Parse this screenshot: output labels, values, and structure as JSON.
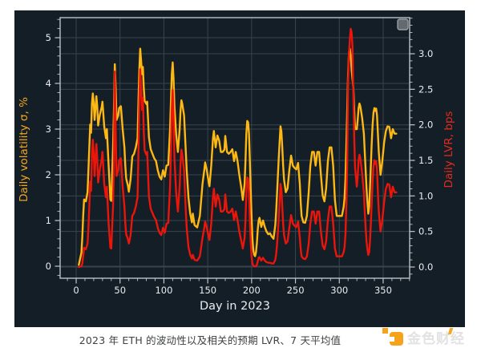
{
  "figure": {
    "background": "#141e27",
    "grid_color": "#38444e",
    "spine_color": "#b9c0c5",
    "tick_color": "#c3c9cd",
    "tick_label_color": "#e9ecee"
  },
  "legend_icon": {
    "name": "legend-box",
    "fill": "#646a6e",
    "stroke": "#989fa4"
  },
  "caption": {
    "text": "2023 年 ETH 的波动性以及相关的预期 LVR、7 天平均值"
  },
  "watermark": {
    "text": "金色财经",
    "accent_color": "#f7a823",
    "icon_color": "#f7a21b"
  },
  "chart_data": {
    "type": "line",
    "title": "",
    "xlabel": "Day in 2023",
    "grid": true,
    "legend_position": "none",
    "xaxis": {
      "lim": [
        -18.3,
        380.2
      ],
      "ticks": [
        0,
        50,
        100,
        150,
        200,
        250,
        300,
        350
      ],
      "tick_labels": [
        "0",
        "50",
        "100",
        "150",
        "200",
        "250",
        "300",
        "350"
      ],
      "minor_step": 10
    },
    "axes": {
      "left": {
        "label": "Daily volatility σ, %",
        "color": "#f4a61c",
        "lim": [
          -0.263,
          5.439
        ],
        "ticks": [
          0,
          1,
          2,
          3,
          4,
          5
        ],
        "tick_labels": [
          "0",
          "1",
          "2",
          "3",
          "4",
          "5"
        ],
        "minor_step": 0.2
      },
      "right": {
        "label": "Daily LVR, bps",
        "color": "#e8291c",
        "lim": [
          -0.158,
          3.508
        ],
        "ticks": [
          0,
          0.5,
          1.0,
          1.5,
          2.0,
          2.5,
          3.0
        ],
        "tick_labels": [
          "0.0",
          "0.5",
          "1.0",
          "1.5",
          "2.0",
          "2.5",
          "3.0"
        ],
        "minor_step": 0.1
      }
    },
    "x": [
      3,
      6,
      7,
      8,
      9,
      11,
      13,
      14,
      15,
      16,
      17,
      18,
      19,
      20,
      21,
      23,
      24,
      25,
      27,
      29,
      30,
      32,
      34,
      35,
      37,
      39,
      40,
      42,
      43,
      44,
      45,
      46,
      48,
      49,
      51,
      53,
      55,
      56,
      57,
      59,
      60,
      62,
      64,
      66,
      68,
      70,
      71,
      72,
      73,
      74,
      75,
      76,
      77,
      78,
      80,
      81,
      83,
      85,
      87,
      89,
      91,
      93,
      95,
      97,
      99,
      101,
      103,
      105,
      107,
      108,
      109,
      110,
      111,
      112,
      114,
      116,
      118,
      119,
      120,
      121,
      123,
      125,
      126,
      128,
      130,
      132,
      133,
      135,
      138,
      141,
      144,
      146,
      147,
      149,
      151,
      152,
      154,
      156,
      157,
      159,
      161,
      163,
      165,
      167,
      169,
      170,
      172,
      174,
      176,
      178,
      180,
      182,
      184,
      186,
      188,
      190,
      192,
      193,
      194,
      195,
      196,
      197,
      198,
      199,
      200,
      201,
      202,
      203,
      204,
      205,
      206,
      207,
      208,
      209,
      211,
      213,
      215,
      217,
      219,
      221,
      223,
      225,
      227,
      228,
      229,
      230,
      231,
      232,
      233,
      234,
      235,
      236,
      237,
      239,
      241,
      243,
      245,
      247,
      249,
      251,
      253,
      255,
      256,
      257,
      259,
      261,
      263,
      265,
      267,
      269,
      271,
      273,
      275,
      277,
      279,
      281,
      283,
      285,
      287,
      289,
      291,
      293,
      295,
      297,
      299,
      301,
      303,
      305,
      306,
      307,
      308,
      309,
      310,
      311,
      312,
      313,
      314,
      315,
      316,
      317,
      318,
      320,
      321,
      322,
      323,
      324,
      326,
      328,
      329,
      330,
      331,
      332,
      333,
      334,
      335,
      336,
      337,
      338,
      339,
      340,
      341,
      342,
      343,
      344,
      345,
      347,
      349,
      351,
      353,
      355,
      357,
      359,
      361,
      363,
      365
    ],
    "series": [
      {
        "name": "Daily volatility σ, % (7-day average)",
        "axis": "left",
        "color": "#fdb813",
        "values": [
          0.03,
          0.3,
          0.65,
          1.12,
          1.46,
          1.42,
          1.62,
          2.1,
          2.6,
          3.1,
          2.92,
          3.56,
          3.78,
          3.58,
          3.2,
          3.72,
          3.5,
          3.08,
          3.32,
          3.48,
          3.6,
          3.06,
          2.8,
          3.0,
          2.2,
          1.46,
          1.43,
          2.6,
          3.4,
          4.42,
          3.9,
          3.2,
          3.3,
          3.46,
          3.5,
          3.0,
          2.6,
          2.2,
          1.92,
          1.76,
          1.63,
          1.9,
          2.4,
          2.46,
          2.6,
          2.8,
          3.6,
          4.3,
          4.76,
          4.5,
          4.2,
          4.36,
          3.92,
          3.62,
          3.55,
          3.6,
          2.82,
          2.56,
          2.46,
          2.36,
          2.3,
          2.1,
          1.96,
          1.9,
          2.1,
          1.96,
          2.2,
          2.22,
          3.0,
          3.6,
          4.2,
          4.46,
          4.1,
          3.5,
          2.9,
          2.5,
          3.0,
          3.4,
          3.63,
          3.55,
          3.3,
          2.5,
          2.1,
          1.5,
          1.15,
          0.96,
          1.15,
          0.9,
          0.85,
          1.1,
          1.8,
          2.1,
          2.27,
          2.1,
          1.85,
          1.75,
          2.2,
          2.8,
          2.96,
          2.6,
          2.86,
          2.75,
          2.5,
          2.5,
          2.55,
          2.85,
          2.5,
          2.46,
          2.5,
          2.56,
          2.3,
          2.5,
          2.3,
          2.0,
          1.75,
          1.45,
          1.8,
          2.3,
          2.9,
          3.18,
          3.15,
          2.9,
          2.3,
          1.7,
          1.1,
          0.6,
          0.35,
          0.25,
          0.22,
          0.3,
          0.5,
          0.8,
          1.0,
          1.06,
          0.86,
          1.0,
          0.86,
          0.76,
          0.7,
          0.72,
          0.65,
          0.6,
          0.9,
          1.2,
          1.6,
          2.0,
          2.4,
          2.75,
          3.06,
          2.95,
          2.6,
          2.2,
          1.9,
          1.62,
          1.7,
          2.1,
          2.42,
          2.2,
          2.15,
          2.12,
          2.26,
          1.8,
          1.4,
          1.1,
          0.96,
          0.95,
          1.1,
          1.6,
          2.2,
          2.5,
          2.5,
          2.2,
          2.5,
          2.5,
          2.0,
          1.55,
          1.42,
          1.7,
          2.3,
          2.6,
          2.6,
          2.2,
          1.45,
          1.1,
          1.1,
          1.1,
          1.1,
          1.3,
          1.5,
          1.9,
          2.6,
          3.4,
          4.2,
          4.68,
          4.76,
          4.6,
          4.3,
          4.1,
          3.9,
          3.4,
          3.0,
          3.0,
          3.2,
          3.46,
          3.56,
          3.5,
          3.25,
          2.9,
          2.5,
          2.1,
          1.7,
          1.4,
          1.15,
          1.3,
          1.7,
          2.2,
          2.7,
          3.1,
          3.36,
          3.46,
          3.4,
          3.45,
          3.3,
          2.9,
          2.5,
          2.0,
          2.3,
          2.7,
          2.95,
          3.06,
          3.05,
          2.8,
          3.0,
          2.9,
          2.9
        ]
      },
      {
        "name": "Daily LVR, bps (7-day average)",
        "axis": "right",
        "color": "#ea150b",
        "values": [
          0.0,
          0.01,
          0.05,
          0.16,
          0.27,
          0.25,
          0.33,
          0.55,
          0.85,
          1.2,
          1.07,
          1.58,
          1.79,
          1.6,
          1.28,
          1.73,
          1.53,
          1.19,
          1.38,
          1.51,
          1.62,
          1.17,
          0.98,
          1.13,
          0.61,
          0.27,
          0.26,
          0.85,
          1.45,
          2.75,
          1.9,
          1.28,
          1.36,
          1.5,
          1.53,
          1.13,
          0.85,
          0.61,
          0.46,
          0.39,
          0.33,
          0.45,
          0.72,
          0.76,
          0.85,
          0.98,
          1.62,
          2.31,
          2.78,
          2.53,
          2.21,
          2.38,
          1.92,
          1.64,
          1.58,
          1.62,
          0.99,
          0.82,
          0.76,
          0.7,
          0.66,
          0.55,
          0.48,
          0.45,
          0.55,
          0.48,
          0.61,
          0.62,
          1.13,
          1.62,
          2.21,
          2.49,
          2.1,
          1.53,
          1.05,
          0.78,
          1.13,
          1.45,
          1.65,
          1.58,
          1.36,
          0.78,
          0.55,
          0.28,
          0.17,
          0.12,
          0.17,
          0.1,
          0.09,
          0.15,
          0.41,
          0.55,
          0.64,
          0.55,
          0.43,
          0.38,
          0.61,
          0.98,
          1.1,
          0.85,
          1.02,
          0.95,
          0.78,
          0.78,
          0.81,
          1.02,
          0.78,
          0.76,
          0.78,
          0.82,
          0.66,
          0.78,
          0.66,
          0.5,
          0.38,
          0.26,
          0.41,
          0.66,
          1.05,
          1.26,
          1.24,
          1.05,
          0.66,
          0.36,
          0.15,
          0.05,
          0.02,
          0.01,
          0.01,
          0.01,
          0.03,
          0.08,
          0.13,
          0.14,
          0.09,
          0.13,
          0.09,
          0.07,
          0.06,
          0.06,
          0.05,
          0.05,
          0.1,
          0.18,
          0.32,
          0.5,
          0.72,
          0.95,
          1.17,
          1.09,
          0.85,
          0.61,
          0.45,
          0.33,
          0.36,
          0.55,
          0.73,
          0.61,
          0.58,
          0.56,
          0.64,
          0.41,
          0.25,
          0.15,
          0.12,
          0.11,
          0.15,
          0.32,
          0.61,
          0.78,
          0.78,
          0.61,
          0.78,
          0.78,
          0.5,
          0.3,
          0.25,
          0.36,
          0.66,
          0.85,
          0.85,
          0.61,
          0.26,
          0.15,
          0.15,
          0.15,
          0.15,
          0.21,
          0.28,
          0.45,
          0.85,
          1.45,
          2.6,
          3.0,
          3.2,
          3.35,
          3.3,
          3.1,
          2.4,
          1.8,
          1.4,
          1.13,
          1.28,
          1.5,
          1.58,
          1.53,
          1.32,
          1.05,
          0.78,
          0.55,
          0.36,
          0.25,
          0.17,
          0.21,
          0.36,
          0.61,
          0.91,
          1.2,
          1.41,
          1.5,
          1.45,
          1.49,
          1.36,
          1.05,
          0.78,
          0.5,
          0.66,
          0.91,
          1.09,
          1.17,
          1.16,
          0.98,
          1.13,
          1.05,
          1.05
        ]
      }
    ]
  }
}
